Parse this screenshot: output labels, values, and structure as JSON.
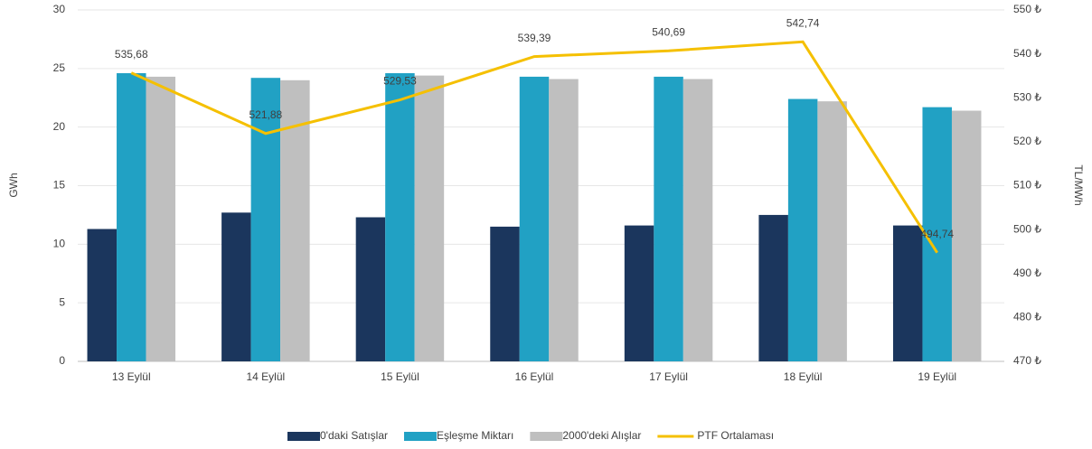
{
  "chart_data": {
    "type": "bar-line",
    "categories": [
      "13 Eylül",
      "14 Eylül",
      "15 Eylül",
      "16 Eylül",
      "17 Eylül",
      "18 Eylül",
      "19 Eylül"
    ],
    "series": [
      {
        "name": "0'daki Satışlar",
        "color": "#1b365d",
        "type": "bar",
        "values": [
          11.3,
          12.7,
          12.3,
          11.5,
          11.6,
          12.5,
          11.6
        ]
      },
      {
        "name": "Eşleşme Miktarı",
        "color": "#21a1c4",
        "type": "bar",
        "values": [
          24.6,
          24.2,
          24.6,
          24.3,
          24.3,
          22.4,
          21.7
        ]
      },
      {
        "name": "2000'deki Alışlar",
        "color": "#bfbfbf",
        "type": "bar",
        "values": [
          24.3,
          24.0,
          24.4,
          24.1,
          24.1,
          22.2,
          21.4
        ]
      },
      {
        "name": "PTF Ortalaması",
        "color": "#f5c000",
        "type": "line",
        "axis": "y2",
        "values": [
          535.68,
          521.88,
          529.53,
          539.39,
          540.69,
          542.74,
          494.74
        ],
        "value_labels": [
          "535,68",
          "521,88",
          "529,53",
          "539,39",
          "540,69",
          "542,74",
          "494,74"
        ]
      }
    ],
    "ylabel": "GWh",
    "y2label": "TL/MWh",
    "ylim": [
      0,
      30
    ],
    "yticks": [
      0,
      5,
      10,
      15,
      20,
      25,
      30
    ],
    "y2lim": [
      470,
      550
    ],
    "y2ticks": [
      {
        "value": 470,
        "label": "470 ₺"
      },
      {
        "value": 480,
        "label": "480 ₺"
      },
      {
        "value": 490,
        "label": "490 ₺"
      },
      {
        "value": 500,
        "label": "500 ₺"
      },
      {
        "value": 510,
        "label": "510 ₺"
      },
      {
        "value": 520,
        "label": "520 ₺"
      },
      {
        "value": 530,
        "label": "530 ₺"
      },
      {
        "value": 540,
        "label": "540 ₺"
      },
      {
        "value": 550,
        "label": "550 ₺"
      }
    ],
    "grid": true,
    "legend": "bottom"
  }
}
